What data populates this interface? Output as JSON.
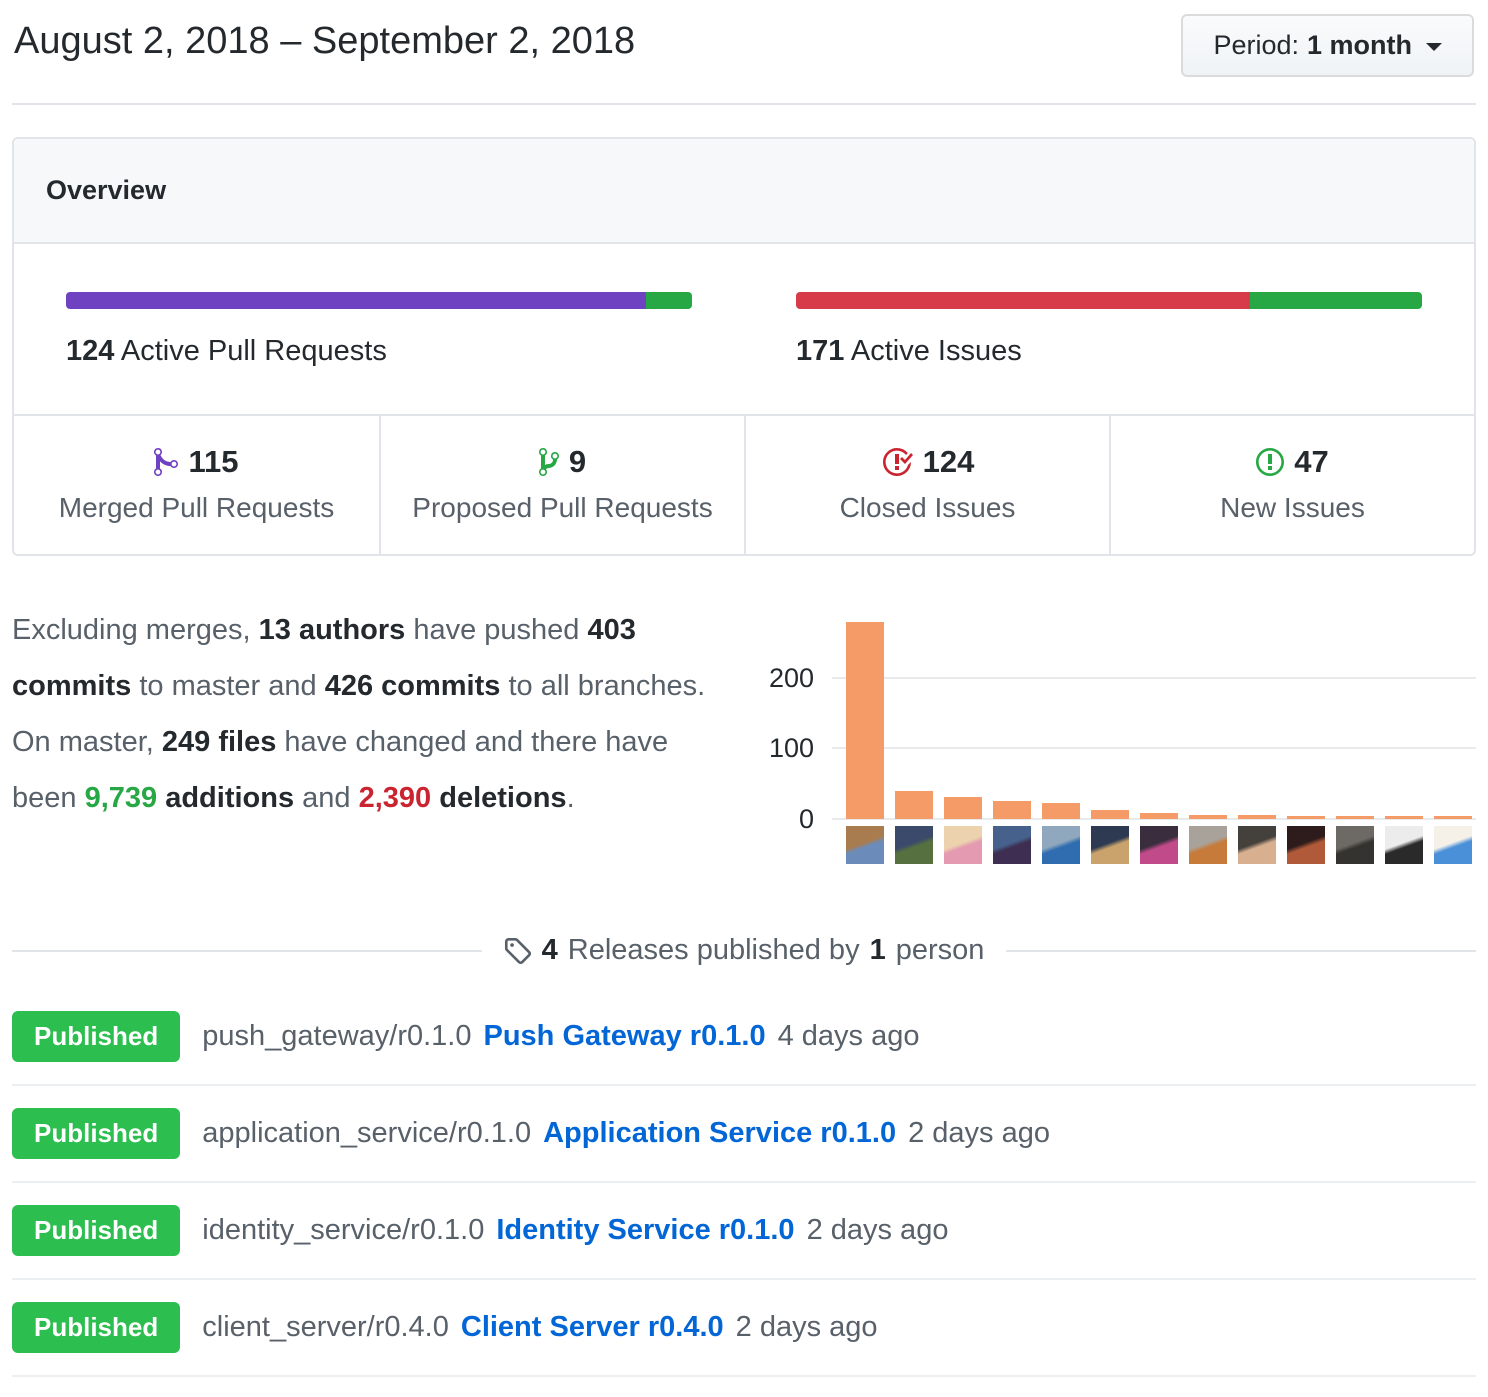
{
  "header": {
    "title": "August 2, 2018 – September 2, 2018",
    "period_label": "Period:",
    "period_value": "1 month"
  },
  "overview": {
    "title": "Overview",
    "pull_requests": {
      "count": "124",
      "label": "Active Pull Requests",
      "merged_pct": 92.7,
      "proposed_pct": 7.3,
      "merged_color": "#6f42c1",
      "proposed_color": "#28a745"
    },
    "issues": {
      "count": "171",
      "label": "Active Issues",
      "closed_pct": 72.5,
      "new_pct": 27.5,
      "closed_color": "#d73a49",
      "new_color": "#28a745"
    },
    "stats": [
      {
        "value": "115",
        "label": "Merged Pull Requests",
        "icon": "git-merge-icon",
        "icon_color": "#6f42c1"
      },
      {
        "value": "9",
        "label": "Proposed Pull Requests",
        "icon": "git-branch-icon",
        "icon_color": "#28a745"
      },
      {
        "value": "124",
        "label": "Closed Issues",
        "icon": "issue-closed-icon",
        "icon_color": "#cb2431"
      },
      {
        "value": "47",
        "label": "New Issues",
        "icon": "issue-opened-icon",
        "icon_color": "#28a745"
      }
    ]
  },
  "summary": {
    "segments": [
      {
        "t": "Excluding merges, ",
        "s": "normal"
      },
      {
        "t": "13 authors",
        "s": "bold"
      },
      {
        "t": " have pushed ",
        "s": "normal"
      },
      {
        "t": "403 commits",
        "s": "bold"
      },
      {
        "t": " to master and ",
        "s": "normal"
      },
      {
        "t": "426 commits",
        "s": "bold"
      },
      {
        "t": " to all branches. On master, ",
        "s": "normal"
      },
      {
        "t": "249 files",
        "s": "bold"
      },
      {
        "t": " have changed and there have been ",
        "s": "normal"
      },
      {
        "t": "9,739",
        "s": "bold-green"
      },
      {
        "t": " ",
        "s": "normal"
      },
      {
        "t": "additions",
        "s": "bold"
      },
      {
        "t": " and ",
        "s": "normal"
      },
      {
        "t": "2,390",
        "s": "bold-red"
      },
      {
        "t": " ",
        "s": "normal"
      },
      {
        "t": "deletions",
        "s": "bold"
      },
      {
        "t": ".",
        "s": "normal"
      }
    ]
  },
  "chart_data": {
    "type": "bar",
    "title": "Commits per author (avatars as x labels)",
    "x": [
      "author-1",
      "author-2",
      "author-3",
      "author-4",
      "author-5",
      "author-6",
      "author-7",
      "author-8",
      "author-9",
      "author-10",
      "author-11",
      "author-12",
      "author-13"
    ],
    "values": [
      279,
      39,
      31,
      25,
      23,
      13,
      9,
      6,
      5,
      2,
      2,
      2,
      2
    ],
    "yticks": [
      0,
      100,
      200
    ],
    "ylim": [
      0,
      290
    ],
    "grid": true,
    "legend": false,
    "bar_color": "#f49b67",
    "avatars": [
      {
        "colors": [
          "#a97c50",
          "#6b8cba"
        ]
      },
      {
        "colors": [
          "#3b4a6b",
          "#56703f"
        ]
      },
      {
        "colors": [
          "#ecd3ae",
          "#e49ab0"
        ]
      },
      {
        "colors": [
          "#46618c",
          "#3d2e52"
        ]
      },
      {
        "colors": [
          "#8fa8bd",
          "#2f6cb0"
        ]
      },
      {
        "colors": [
          "#2e3a52",
          "#c9a36b"
        ]
      },
      {
        "colors": [
          "#3a2e3e",
          "#c04a8a"
        ]
      },
      {
        "colors": [
          "#a8a29b",
          "#c77b3a"
        ]
      },
      {
        "colors": [
          "#44403c",
          "#d8b090"
        ]
      },
      {
        "colors": [
          "#2e1c1c",
          "#b05a3a"
        ]
      },
      {
        "colors": [
          "#6d6a66",
          "#35332f"
        ]
      },
      {
        "colors": [
          "#ececec",
          "#2a2a2a"
        ]
      },
      {
        "colors": [
          "#f5f0e8",
          "#4a90d9"
        ]
      }
    ]
  },
  "releases": {
    "heading": {
      "icon": "tag-icon",
      "count": "4",
      "middle": "Releases published by",
      "person_count": "1",
      "suffix": "person"
    },
    "items": [
      {
        "badge": "Published",
        "tag": "push_gateway/r0.1.0",
        "link": "Push Gateway r0.1.0",
        "time": "4 days ago"
      },
      {
        "badge": "Published",
        "tag": "application_service/r0.1.0",
        "link": "Application Service r0.1.0",
        "time": "2 days ago"
      },
      {
        "badge": "Published",
        "tag": "identity_service/r0.1.0",
        "link": "Identity Service r0.1.0",
        "time": "2 days ago"
      },
      {
        "badge": "Published",
        "tag": "client_server/r0.4.0",
        "link": "Client Server r0.4.0",
        "time": "2 days ago"
      }
    ]
  },
  "colors": {
    "text_dark": "#24292e",
    "text_gray": "#586069",
    "border": "#e1e4e8",
    "box_header_bg": "#f6f8fa",
    "accent_purple": "#6f42c1",
    "accent_green": "#28a745",
    "accent_red": "#d73a49",
    "badge_green": "#2cbe4e",
    "link_blue": "#0366d6",
    "bar_orange": "#f49b67"
  }
}
